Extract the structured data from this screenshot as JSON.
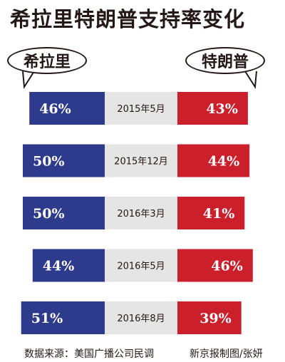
{
  "title": "希拉里特朗普支持率变化",
  "legend": {
    "left": "希拉里",
    "right": "特朗普"
  },
  "source": "数据来源：美国广播公司民调",
  "credit": "新京报制图/张妍",
  "colors": {
    "clinton": "#2e3a8c",
    "trump": "#cc1f2c",
    "middle": "#e5e5e5"
  },
  "chart_data": {
    "type": "bar",
    "categories": [
      "2015年5月",
      "2015年12月",
      "2016年3月",
      "2016年5月",
      "2016年8月"
    ],
    "series": [
      {
        "name": "希拉里",
        "values": [
          46,
          50,
          50,
          44,
          51
        ],
        "labels": [
          "46%",
          "50%",
          "50%",
          "44%",
          "51%"
        ]
      },
      {
        "name": "特朗普",
        "values": [
          43,
          44,
          41,
          46,
          39
        ],
        "labels": [
          "43%",
          "44%",
          "41%",
          "46%",
          "39%"
        ]
      }
    ],
    "xlabel": "",
    "ylabel": ""
  }
}
